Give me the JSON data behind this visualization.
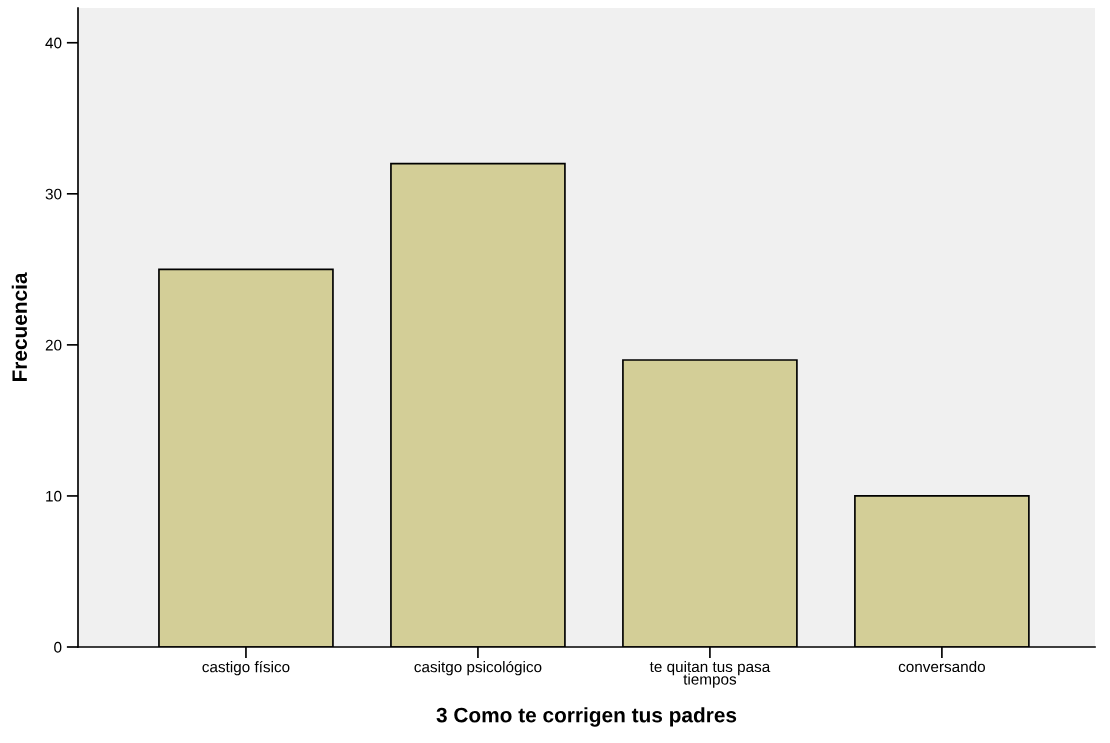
{
  "chart_data": {
    "type": "bar",
    "xlabel": "3 Como te corrigen tus padres",
    "ylabel": "Frecuencia",
    "categories": [
      "castigo físico",
      "casitgo psicológico",
      "te quitan tus pasa\ntiempos",
      "conversando"
    ],
    "values": [
      25,
      32,
      19,
      10
    ],
    "color": "#d3ce97",
    "ylim": [
      0,
      42.3
    ],
    "yticks": [
      0,
      10,
      20,
      30,
      40
    ],
    "grid": false
  }
}
